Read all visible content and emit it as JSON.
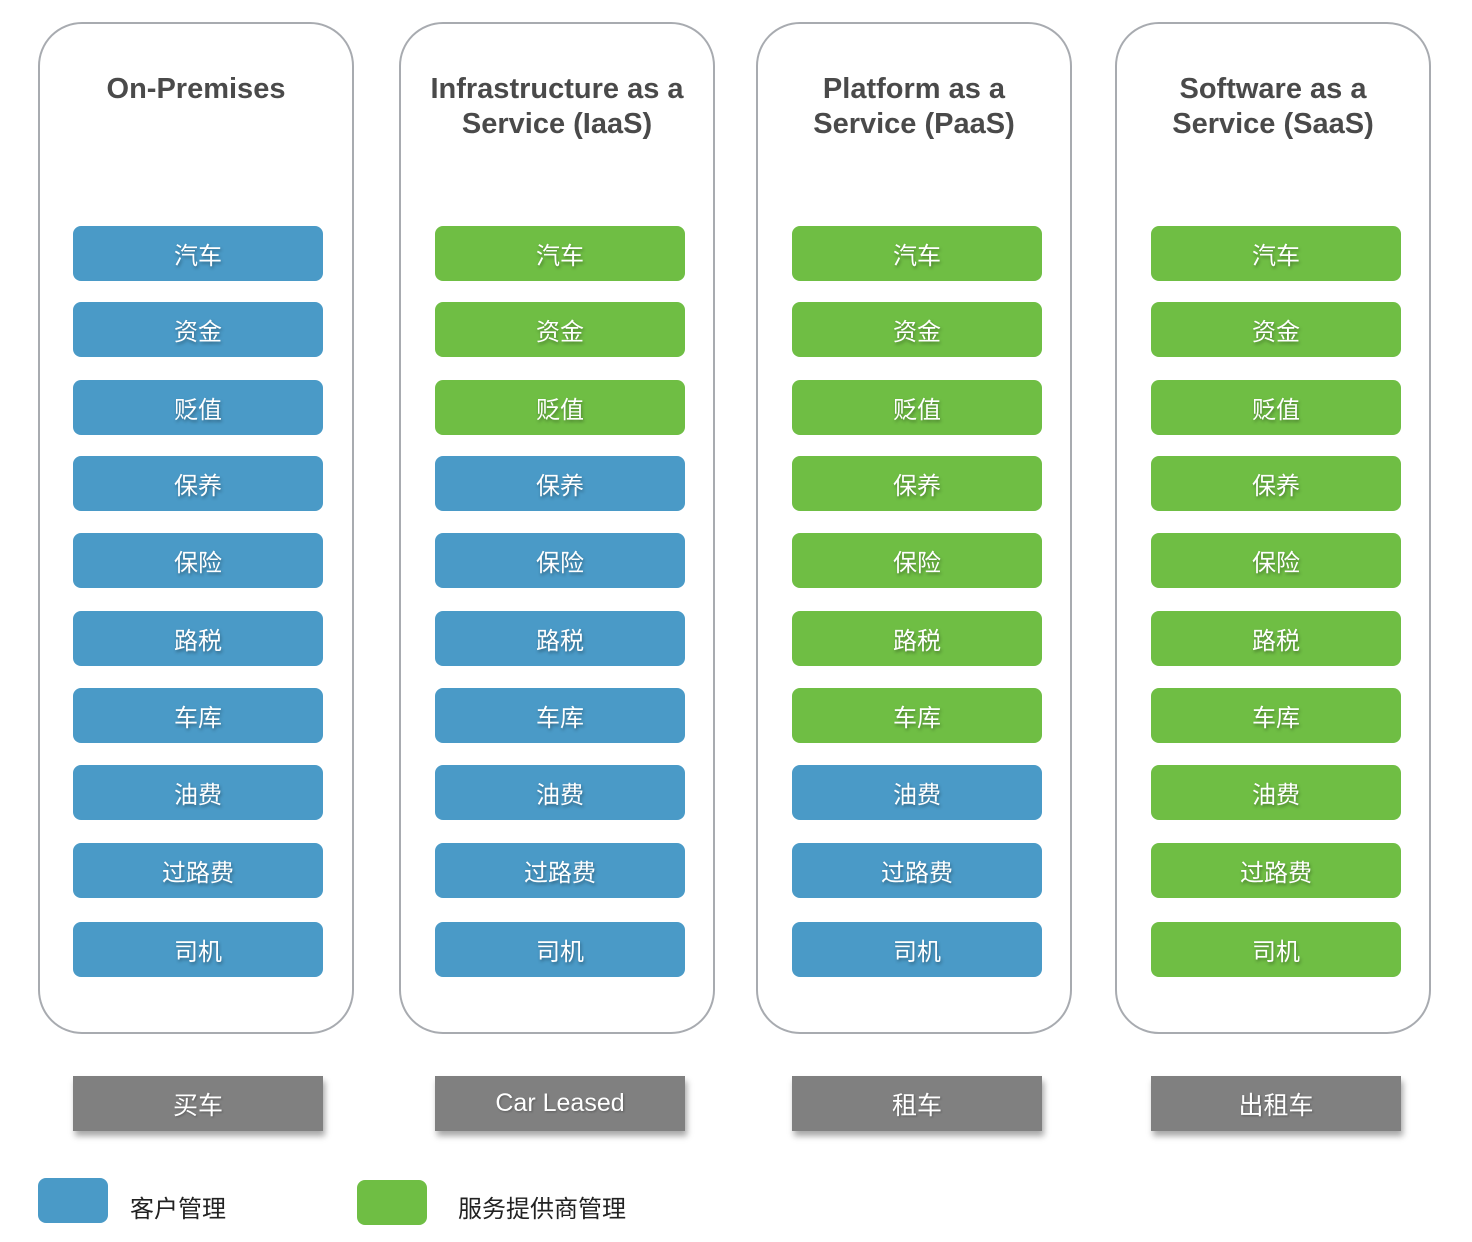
{
  "colors": {
    "customer": "#4a9ac7",
    "provider": "#6fbe44",
    "caption_bg": "#808080",
    "title": "#4a4a4a"
  },
  "columns": [
    {
      "title": "On-Premises",
      "caption": "买车",
      "items": [
        {
          "label": "汽车",
          "managed_by": "customer"
        },
        {
          "label": "资金",
          "managed_by": "customer"
        },
        {
          "label": "贬值",
          "managed_by": "customer"
        },
        {
          "label": "保养",
          "managed_by": "customer"
        },
        {
          "label": "保险",
          "managed_by": "customer"
        },
        {
          "label": "路税",
          "managed_by": "customer"
        },
        {
          "label": "车库",
          "managed_by": "customer"
        },
        {
          "label": "油费",
          "managed_by": "customer"
        },
        {
          "label": "过路费",
          "managed_by": "customer"
        },
        {
          "label": "司机",
          "managed_by": "customer"
        }
      ]
    },
    {
      "title": "Infrastructure as a Service (IaaS)",
      "caption": "Car Leased",
      "items": [
        {
          "label": "汽车",
          "managed_by": "provider"
        },
        {
          "label": "资金",
          "managed_by": "provider"
        },
        {
          "label": "贬值",
          "managed_by": "provider"
        },
        {
          "label": "保养",
          "managed_by": "customer"
        },
        {
          "label": "保险",
          "managed_by": "customer"
        },
        {
          "label": "路税",
          "managed_by": "customer"
        },
        {
          "label": "车库",
          "managed_by": "customer"
        },
        {
          "label": "油费",
          "managed_by": "customer"
        },
        {
          "label": "过路费",
          "managed_by": "customer"
        },
        {
          "label": "司机",
          "managed_by": "customer"
        }
      ]
    },
    {
      "title": "Platform as a Service (PaaS)",
      "caption": "租车",
      "items": [
        {
          "label": "汽车",
          "managed_by": "provider"
        },
        {
          "label": "资金",
          "managed_by": "provider"
        },
        {
          "label": "贬值",
          "managed_by": "provider"
        },
        {
          "label": "保养",
          "managed_by": "provider"
        },
        {
          "label": "保险",
          "managed_by": "provider"
        },
        {
          "label": "路税",
          "managed_by": "provider"
        },
        {
          "label": "车库",
          "managed_by": "provider"
        },
        {
          "label": "油费",
          "managed_by": "customer"
        },
        {
          "label": "过路费",
          "managed_by": "customer"
        },
        {
          "label": "司机",
          "managed_by": "customer"
        }
      ]
    },
    {
      "title": "Software as a Service (SaaS)",
      "caption": "出租车",
      "items": [
        {
          "label": "汽车",
          "managed_by": "provider"
        },
        {
          "label": "资金",
          "managed_by": "provider"
        },
        {
          "label": "贬值",
          "managed_by": "provider"
        },
        {
          "label": "保养",
          "managed_by": "provider"
        },
        {
          "label": "保险",
          "managed_by": "provider"
        },
        {
          "label": "路税",
          "managed_by": "provider"
        },
        {
          "label": "车库",
          "managed_by": "provider"
        },
        {
          "label": "油费",
          "managed_by": "provider"
        },
        {
          "label": "过路费",
          "managed_by": "provider"
        },
        {
          "label": "司机",
          "managed_by": "provider"
        }
      ]
    }
  ],
  "legend": [
    {
      "key": "customer",
      "label": "客户管理"
    },
    {
      "key": "provider",
      "label": "服务提供商管理"
    }
  ]
}
